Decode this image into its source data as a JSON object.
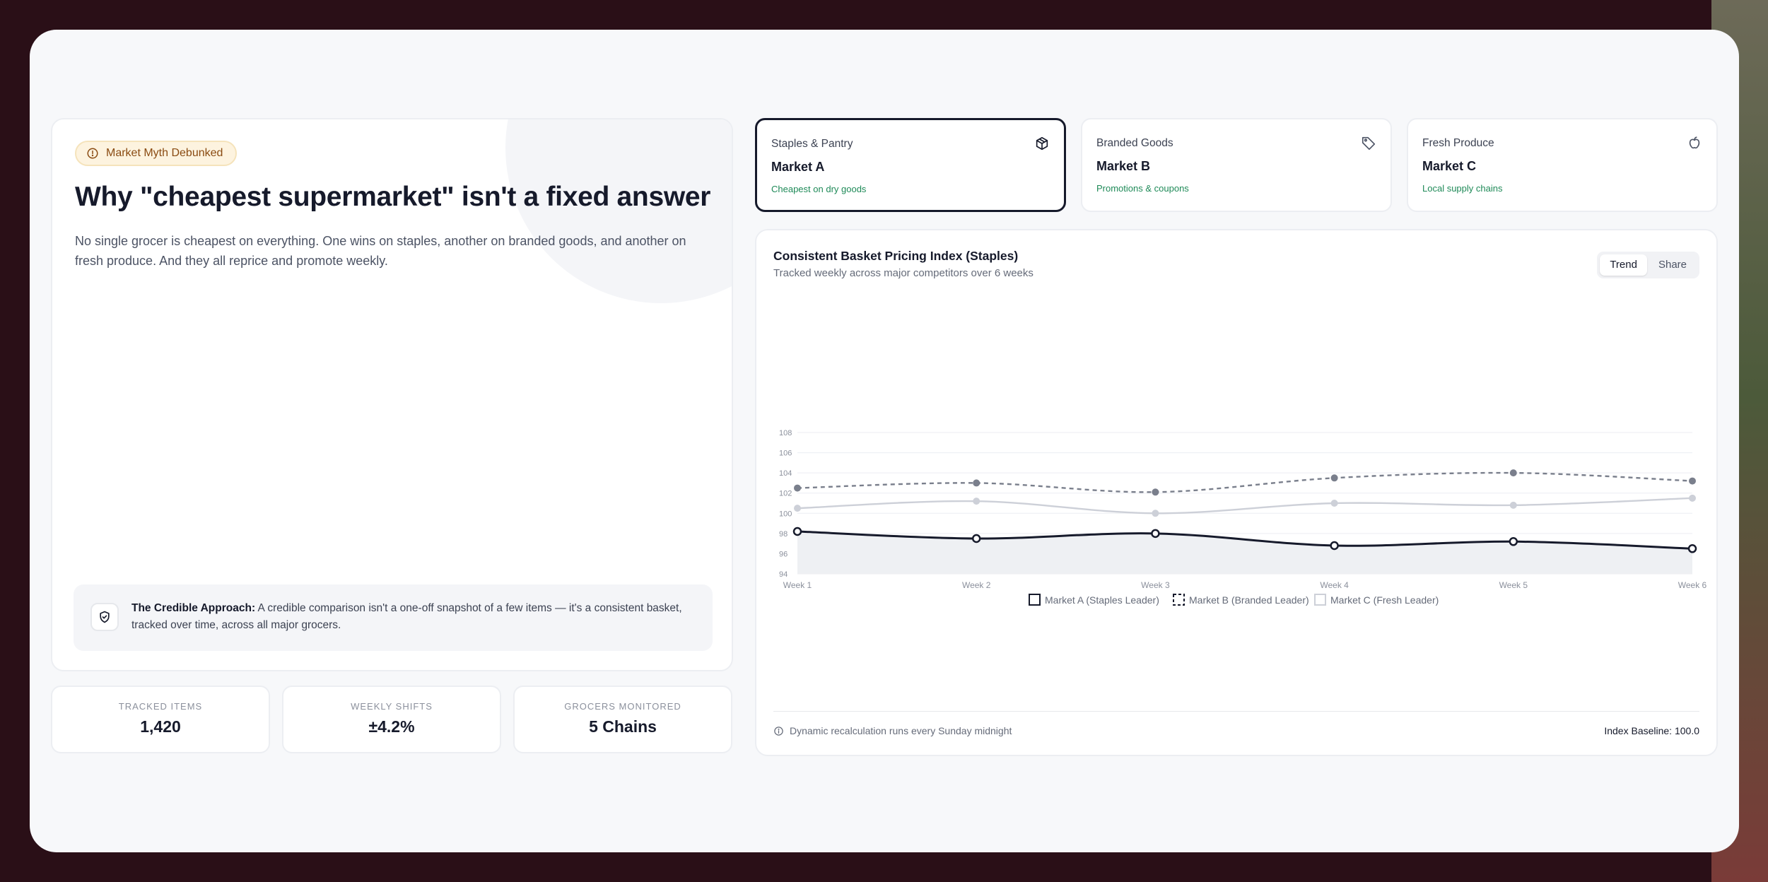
{
  "hero": {
    "badge": "Market Myth Debunked",
    "title": "Why \"cheapest supermarket\" isn't a fixed answer",
    "body": "No single grocer is cheapest on everything. One wins on staples, another on branded goods, and another on fresh produce. And they all reprice and promote weekly.",
    "approach_lead": "The Credible Approach:",
    "approach_text": " A credible comparison isn't a one-off snapshot of a few items — it's a consistent basket, tracked over time, across all major grocers."
  },
  "stats": [
    {
      "label": "Tracked Items",
      "value": "1,420"
    },
    {
      "label": "Weekly Shifts",
      "value": "±4.2%"
    },
    {
      "label": "Grocers Monitored",
      "value": "5 Chains"
    }
  ],
  "markets": [
    {
      "category": "Staples & Pantry",
      "name": "Market A",
      "sub": "Cheapest on dry goods",
      "icon": "package-icon",
      "active": true
    },
    {
      "category": "Branded Goods",
      "name": "Market B",
      "sub": "Promotions & coupons",
      "icon": "tag-icon",
      "active": false
    },
    {
      "category": "Fresh Produce",
      "name": "Market C",
      "sub": "Local supply chains",
      "icon": "apple-icon",
      "active": false
    }
  ],
  "chart_card": {
    "title": "Consistent Basket Pricing Index (Staples)",
    "subtitle": "Tracked weekly across major competitors over 6 weeks",
    "toggle": [
      "Trend",
      "Share"
    ],
    "note": "Dynamic recalculation runs every Sunday midnight",
    "baseline": "Index Baseline: 100.0"
  },
  "colors": {
    "ink": "#161a2b",
    "accent_green": "#1f8a58",
    "badge_bg": "#fdf3df",
    "series_a": "#161a2b",
    "series_b": "#7a7f8c",
    "series_c": "#cdd0d8"
  },
  "chart_data": {
    "type": "line",
    "title": "Consistent Basket Pricing Index (Staples)",
    "x": [
      "Week 1",
      "Week 2",
      "Week 3",
      "Week 4",
      "Week 5",
      "Week 6"
    ],
    "ylim": [
      94,
      108
    ],
    "yticks": [
      94,
      96,
      98,
      100,
      102,
      104,
      106,
      108
    ],
    "grid": true,
    "legend_position": "bottom",
    "series": [
      {
        "name": "Market A (Staples Leader)",
        "values": [
          98.2,
          97.5,
          98.0,
          96.8,
          97.2,
          96.5
        ],
        "style": "solid",
        "color": "#161a2b"
      },
      {
        "name": "Market B (Branded Leader)",
        "values": [
          102.5,
          103.0,
          102.1,
          103.5,
          104.0,
          103.2
        ],
        "style": "dashed",
        "color": "#7a7f8c"
      },
      {
        "name": "Market C (Fresh Leader)",
        "values": [
          100.5,
          101.2,
          100.0,
          101.0,
          100.8,
          101.5
        ],
        "style": "solid",
        "color": "#cdd0d8"
      }
    ]
  }
}
